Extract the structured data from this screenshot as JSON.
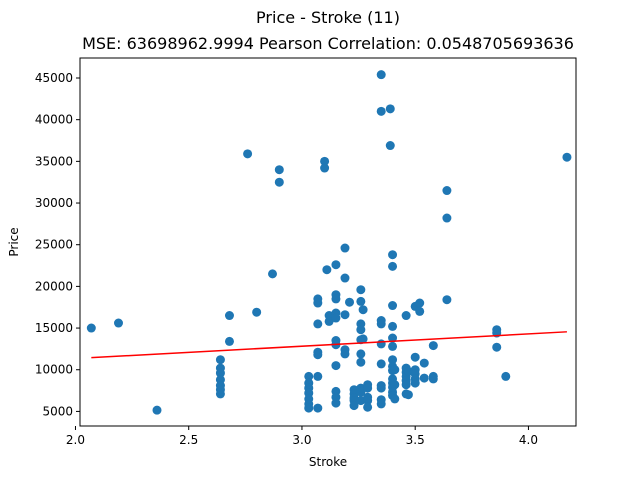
{
  "chart_data": {
    "type": "scatter",
    "title": "Price - Stroke (11)",
    "subtitle": "MSE: 63698962.9994 Pearson Correlation: 0.0548705693636",
    "xlabel": "Stroke",
    "ylabel": "Price",
    "xlim": [
      2.02,
      4.21
    ],
    "ylim": [
      3250,
      47400
    ],
    "x_ticks": [
      2.0,
      2.5,
      3.0,
      3.5,
      4.0
    ],
    "x_tick_labels": [
      "2.0",
      "2.5",
      "3.0",
      "3.5",
      "4.0"
    ],
    "y_ticks": [
      5000,
      10000,
      15000,
      20000,
      25000,
      30000,
      35000,
      40000,
      45000
    ],
    "y_tick_labels": [
      "5000",
      "10000",
      "15000",
      "20000",
      "25000",
      "30000",
      "35000",
      "40000",
      "45000"
    ],
    "grid": false,
    "point_color": "#1f77b4",
    "series": [
      {
        "points": [
          [
            2.07,
            15000
          ],
          [
            2.19,
            15600
          ],
          [
            2.36,
            5150
          ],
          [
            2.64,
            11200
          ],
          [
            2.64,
            10200
          ],
          [
            2.64,
            9600
          ],
          [
            2.64,
            8800
          ],
          [
            2.64,
            8100
          ],
          [
            2.64,
            7600
          ],
          [
            2.64,
            7100
          ],
          [
            2.68,
            16500
          ],
          [
            2.68,
            13400
          ],
          [
            2.76,
            35900
          ],
          [
            2.8,
            16900
          ],
          [
            2.87,
            21500
          ],
          [
            2.9,
            34000
          ],
          [
            2.9,
            32500
          ],
          [
            3.03,
            9200
          ],
          [
            3.03,
            8400
          ],
          [
            3.03,
            7800
          ],
          [
            3.03,
            7200
          ],
          [
            3.03,
            6500
          ],
          [
            3.03,
            5900
          ],
          [
            3.03,
            5400
          ],
          [
            3.07,
            18500
          ],
          [
            3.07,
            18000
          ],
          [
            3.07,
            15500
          ],
          [
            3.07,
            12100
          ],
          [
            3.07,
            11800
          ],
          [
            3.07,
            9200
          ],
          [
            3.07,
            5400
          ],
          [
            3.1,
            35000
          ],
          [
            3.1,
            34200
          ],
          [
            3.11,
            22000
          ],
          [
            3.12,
            16500
          ],
          [
            3.12,
            15800
          ],
          [
            3.15,
            22600
          ],
          [
            3.15,
            19000
          ],
          [
            3.15,
            18500
          ],
          [
            3.15,
            16800
          ],
          [
            3.15,
            16200
          ],
          [
            3.15,
            13500
          ],
          [
            3.15,
            13000
          ],
          [
            3.15,
            10500
          ],
          [
            3.15,
            7400
          ],
          [
            3.15,
            6700
          ],
          [
            3.15,
            6000
          ],
          [
            3.19,
            24600
          ],
          [
            3.19,
            21000
          ],
          [
            3.19,
            16600
          ],
          [
            3.19,
            12400
          ],
          [
            3.19,
            11900
          ],
          [
            3.21,
            18100
          ],
          [
            3.23,
            7600
          ],
          [
            3.23,
            7100
          ],
          [
            3.23,
            6600
          ],
          [
            3.23,
            6300
          ],
          [
            3.23,
            5700
          ],
          [
            3.26,
            19600
          ],
          [
            3.26,
            18200
          ],
          [
            3.26,
            15500
          ],
          [
            3.26,
            14800
          ],
          [
            3.26,
            13600
          ],
          [
            3.26,
            11900
          ],
          [
            3.26,
            10900
          ],
          [
            3.26,
            7800
          ],
          [
            3.26,
            7300
          ],
          [
            3.26,
            6300
          ],
          [
            3.27,
            17200
          ],
          [
            3.27,
            13700
          ],
          [
            3.29,
            8200
          ],
          [
            3.29,
            7800
          ],
          [
            3.29,
            6700
          ],
          [
            3.29,
            6300
          ],
          [
            3.29,
            5500
          ],
          [
            3.35,
            45400
          ],
          [
            3.35,
            41000
          ],
          [
            3.35,
            15900
          ],
          [
            3.35,
            15500
          ],
          [
            3.35,
            13100
          ],
          [
            3.35,
            10700
          ],
          [
            3.35,
            8100
          ],
          [
            3.35,
            7800
          ],
          [
            3.35,
            6400
          ],
          [
            3.35,
            5900
          ],
          [
            3.39,
            41300
          ],
          [
            3.39,
            36900
          ],
          [
            3.4,
            23800
          ],
          [
            3.4,
            22400
          ],
          [
            3.4,
            17700
          ],
          [
            3.4,
            15200
          ],
          [
            3.4,
            13800
          ],
          [
            3.4,
            12800
          ],
          [
            3.4,
            11200
          ],
          [
            3.4,
            10400
          ],
          [
            3.4,
            9900
          ],
          [
            3.4,
            8900
          ],
          [
            3.4,
            8400
          ],
          [
            3.4,
            7900
          ],
          [
            3.4,
            7300
          ],
          [
            3.4,
            6900
          ],
          [
            3.41,
            10000
          ],
          [
            3.41,
            8200
          ],
          [
            3.41,
            6500
          ],
          [
            3.46,
            16500
          ],
          [
            3.46,
            10200
          ],
          [
            3.46,
            9700
          ],
          [
            3.46,
            9200
          ],
          [
            3.46,
            8700
          ],
          [
            3.46,
            8200
          ],
          [
            3.46,
            7100
          ],
          [
            3.47,
            9800
          ],
          [
            3.47,
            7000
          ],
          [
            3.5,
            17600
          ],
          [
            3.5,
            11500
          ],
          [
            3.5,
            10000
          ],
          [
            3.5,
            9500
          ],
          [
            3.5,
            8900
          ],
          [
            3.5,
            8400
          ],
          [
            3.52,
            18000
          ],
          [
            3.52,
            17000
          ],
          [
            3.54,
            10800
          ],
          [
            3.54,
            9000
          ],
          [
            3.58,
            12900
          ],
          [
            3.58,
            9200
          ],
          [
            3.58,
            8900
          ],
          [
            3.64,
            31500
          ],
          [
            3.64,
            28200
          ],
          [
            3.64,
            18400
          ],
          [
            3.86,
            14800
          ],
          [
            3.86,
            14400
          ],
          [
            3.86,
            12700
          ],
          [
            3.9,
            9200
          ],
          [
            4.17,
            35500
          ]
        ]
      }
    ],
    "regression_line": {
      "color": "#ff0000",
      "x": [
        2.07,
        4.17
      ],
      "y": [
        11450,
        14550
      ]
    }
  }
}
